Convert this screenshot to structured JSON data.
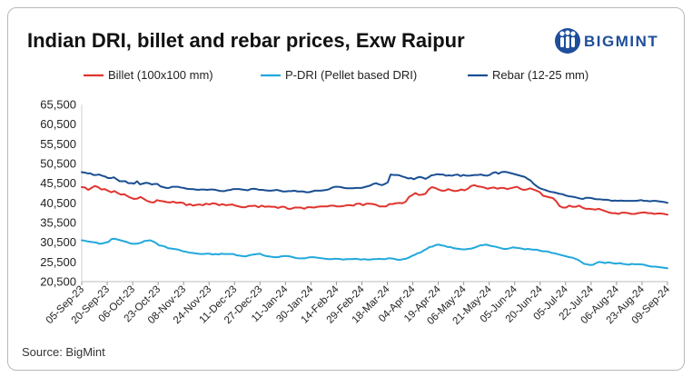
{
  "chart_data": {
    "type": "line",
    "title": "Indian DRI, billet and rebar prices, Exw Raipur",
    "source": "Source: BigMint",
    "brand": "BIGMINT",
    "yticks": [
      "65,500",
      "60,500",
      "55,500",
      "50,500",
      "45,500",
      "40,500",
      "35,500",
      "30,500",
      "25,500",
      "20,500"
    ],
    "ylim": [
      20500,
      65500
    ],
    "xticks": [
      "05-Sep-23",
      "20-Sep-23",
      "06-Oct-23",
      "23-Oct-23",
      "08-Nov-23",
      "24-Nov-23",
      "11-Dec-23",
      "27-Dec-23",
      "11-Jan-24",
      "30-Jan-24",
      "14-Feb-24",
      "29-Feb-24",
      "18-Mar-24",
      "04-Apr-24",
      "19-Apr-24",
      "06-May-24",
      "21-May-24",
      "05-Jun-24",
      "20-Jun-24",
      "05-Jul-24",
      "22-Jul-24",
      "06-Aug-24",
      "23-Aug-24",
      "09-Sep-24"
    ],
    "grid": false,
    "legend_position": "top",
    "series": [
      {
        "name": "Billet (100x100 mm)",
        "color": "#e0342f",
        "values": [
          44500,
          44400,
          43800,
          44300,
          44800,
          44500,
          43900,
          44000,
          43600,
          43200,
          43500,
          43000,
          42600,
          42700,
          42200,
          41800,
          41500,
          41600,
          42000,
          41500,
          41000,
          40700,
          40600,
          41200,
          41000,
          40900,
          40700,
          40600,
          40800,
          40500,
          40600,
          40500,
          39900,
          40200,
          39800,
          40000,
          40100,
          39900,
          40300,
          40100,
          40400,
          40300,
          39900,
          40200,
          39900,
          40000,
          40100,
          39800,
          39600,
          39400,
          39400,
          39700,
          39700,
          39800,
          39400,
          39800,
          39500,
          39600,
          39500,
          39500,
          39200,
          39500,
          39500,
          39000,
          39000,
          39300,
          39300,
          39300,
          39000,
          39400,
          39400,
          39300,
          39500,
          39600,
          39600,
          39600,
          39800,
          39800,
          39600,
          39600,
          39700,
          39900,
          39900,
          39800,
          40300,
          40300,
          39900,
          40300,
          40300,
          40200,
          40000,
          39600,
          39600,
          39600,
          40200,
          40200,
          40400,
          40500,
          40400,
          40800,
          42000,
          42500,
          43000,
          42500,
          42600,
          42800,
          43900,
          44500,
          44300,
          43900,
          43600,
          43600,
          44000,
          43700,
          43500,
          43600,
          43900,
          43700,
          44100,
          44800,
          45000,
          44700,
          44600,
          44400,
          44100,
          44300,
          44400,
          44100,
          44300,
          44300,
          44000,
          44200,
          44400,
          44600,
          44100,
          43800,
          43900,
          44200,
          43900,
          43600,
          43200,
          42300,
          42100,
          41900,
          41700,
          40900,
          39700,
          39300,
          39300,
          39800,
          39500,
          39500,
          39800,
          39300,
          39000,
          39000,
          38900,
          38800,
          39000,
          38700,
          38400,
          38100,
          37900,
          37900,
          37700,
          38000,
          38000,
          37900,
          37700,
          37700,
          37900,
          38000,
          38100,
          37900,
          37900,
          37700,
          37800,
          37800,
          37700,
          37500
        ]
      },
      {
        "name": "P-DRI (Pellet based DRI)",
        "color": "#22a8dc",
        "values": [
          31000,
          30900,
          30700,
          30600,
          30500,
          30400,
          30100,
          30200,
          30400,
          30600,
          31300,
          31400,
          31200,
          31000,
          30800,
          30600,
          30300,
          30100,
          30100,
          30200,
          30400,
          30800,
          30900,
          31000,
          30700,
          30300,
          29700,
          29600,
          29400,
          29000,
          28900,
          28800,
          28700,
          28500,
          28200,
          28100,
          27900,
          27800,
          27700,
          27600,
          27500,
          27500,
          27600,
          27600,
          27400,
          27500,
          27400,
          27600,
          27500,
          27500,
          27500,
          27500,
          27200,
          27100,
          27000,
          26900,
          27100,
          27300,
          27400,
          27500,
          27600,
          27200,
          27000,
          26900,
          26800,
          26700,
          26700,
          26900,
          27000,
          27000,
          26900,
          26700,
          26500,
          26400,
          26400,
          26400,
          26600,
          26700,
          26700,
          26600,
          26500,
          26400,
          26300,
          26200,
          26200,
          26300,
          26300,
          26200,
          26100,
          26200,
          26200,
          26200,
          26300,
          26200,
          26100,
          26200,
          26100,
          26100,
          26200,
          26200,
          26300,
          26200,
          26200,
          26400,
          26400,
          26300,
          26100,
          26000,
          26200,
          26300,
          26600,
          27000,
          27300,
          27700,
          27900,
          28400,
          28800,
          29300,
          29400,
          29800,
          29900,
          29700,
          29600,
          29300,
          29300,
          29000,
          28900,
          28800,
          28700,
          28700,
          28800,
          28900,
          29100,
          29400,
          29700,
          29800,
          29900,
          29700,
          29500,
          29400,
          29200,
          29000,
          28800,
          28800,
          29000,
          29200,
          29100,
          29000,
          28900,
          28700,
          28800,
          28700,
          28600,
          28600,
          28400,
          28200,
          28200,
          28100,
          27800,
          27700,
          27500,
          27300,
          27100,
          26900,
          26700,
          26600,
          26300,
          26000,
          25500,
          25000,
          24900,
          24700,
          24800,
          25200,
          25500,
          25400,
          25200,
          25400,
          25300,
          25100,
          25100,
          25200,
          25000,
          24900,
          24800,
          25000,
          24900,
          24900,
          24900,
          24800,
          24600,
          24400,
          24300,
          24300,
          24200,
          24100,
          24000,
          23900
        ]
      },
      {
        "name": "Rebar (12-25 mm)",
        "color": "#1a4f93",
        "values": [
          48300,
          48200,
          48000,
          48000,
          47600,
          47600,
          47700,
          47400,
          47200,
          46800,
          46800,
          47000,
          46500,
          46000,
          46000,
          46000,
          45500,
          45500,
          45400,
          46000,
          45200,
          45400,
          45600,
          45500,
          45200,
          45300,
          45300,
          44700,
          44500,
          44300,
          44300,
          44600,
          44600,
          44600,
          44400,
          44300,
          44100,
          44000,
          44000,
          43900,
          43800,
          43900,
          43900,
          43800,
          43900,
          43900,
          43800,
          43600,
          43500,
          43500,
          43700,
          43800,
          44000,
          44000,
          44000,
          43900,
          43800,
          43700,
          44000,
          44100,
          44000,
          43800,
          43800,
          43700,
          43600,
          43600,
          43700,
          43800,
          43600,
          43400,
          43400,
          43500,
          43500,
          43600,
          43400,
          43400,
          43400,
          43200,
          43200,
          43400,
          43600,
          43600,
          43600,
          43700,
          43800,
          44000,
          44400,
          44600,
          44600,
          44500,
          44300,
          44200,
          44200,
          44200,
          44300,
          44300,
          44300,
          44500,
          44700,
          44900,
          45300,
          45500,
          45200,
          45000,
          45300,
          45700,
          47700,
          47600,
          47600,
          47500,
          47200,
          47000,
          46700,
          46800,
          46500,
          46900,
          47100,
          46900,
          46600,
          47000,
          47500,
          47600,
          47800,
          47700,
          47700,
          47400,
          47500,
          47400,
          47600,
          47700,
          47300,
          47600,
          47400,
          47400,
          47500,
          47600,
          47600,
          47700,
          47500,
          47400,
          47600,
          48100,
          48300,
          47900,
          48300,
          48400,
          48300,
          48100,
          47900,
          47700,
          47500,
          47300,
          47100,
          46600,
          46200,
          45400,
          44800,
          44300,
          44000,
          43800,
          43500,
          43300,
          43200,
          43000,
          42800,
          42700,
          42400,
          42200,
          42100,
          42000,
          41800,
          41600,
          41500,
          41800,
          41800,
          41700,
          41500,
          41400,
          41400,
          41300,
          41300,
          41200,
          41000,
          41100,
          41000,
          41100,
          41000,
          41000,
          41000,
          41000,
          41000,
          41100,
          41200,
          41000,
          41000,
          40900,
          41000,
          41000,
          40900,
          40800,
          40700,
          40500
        ]
      }
    ]
  }
}
